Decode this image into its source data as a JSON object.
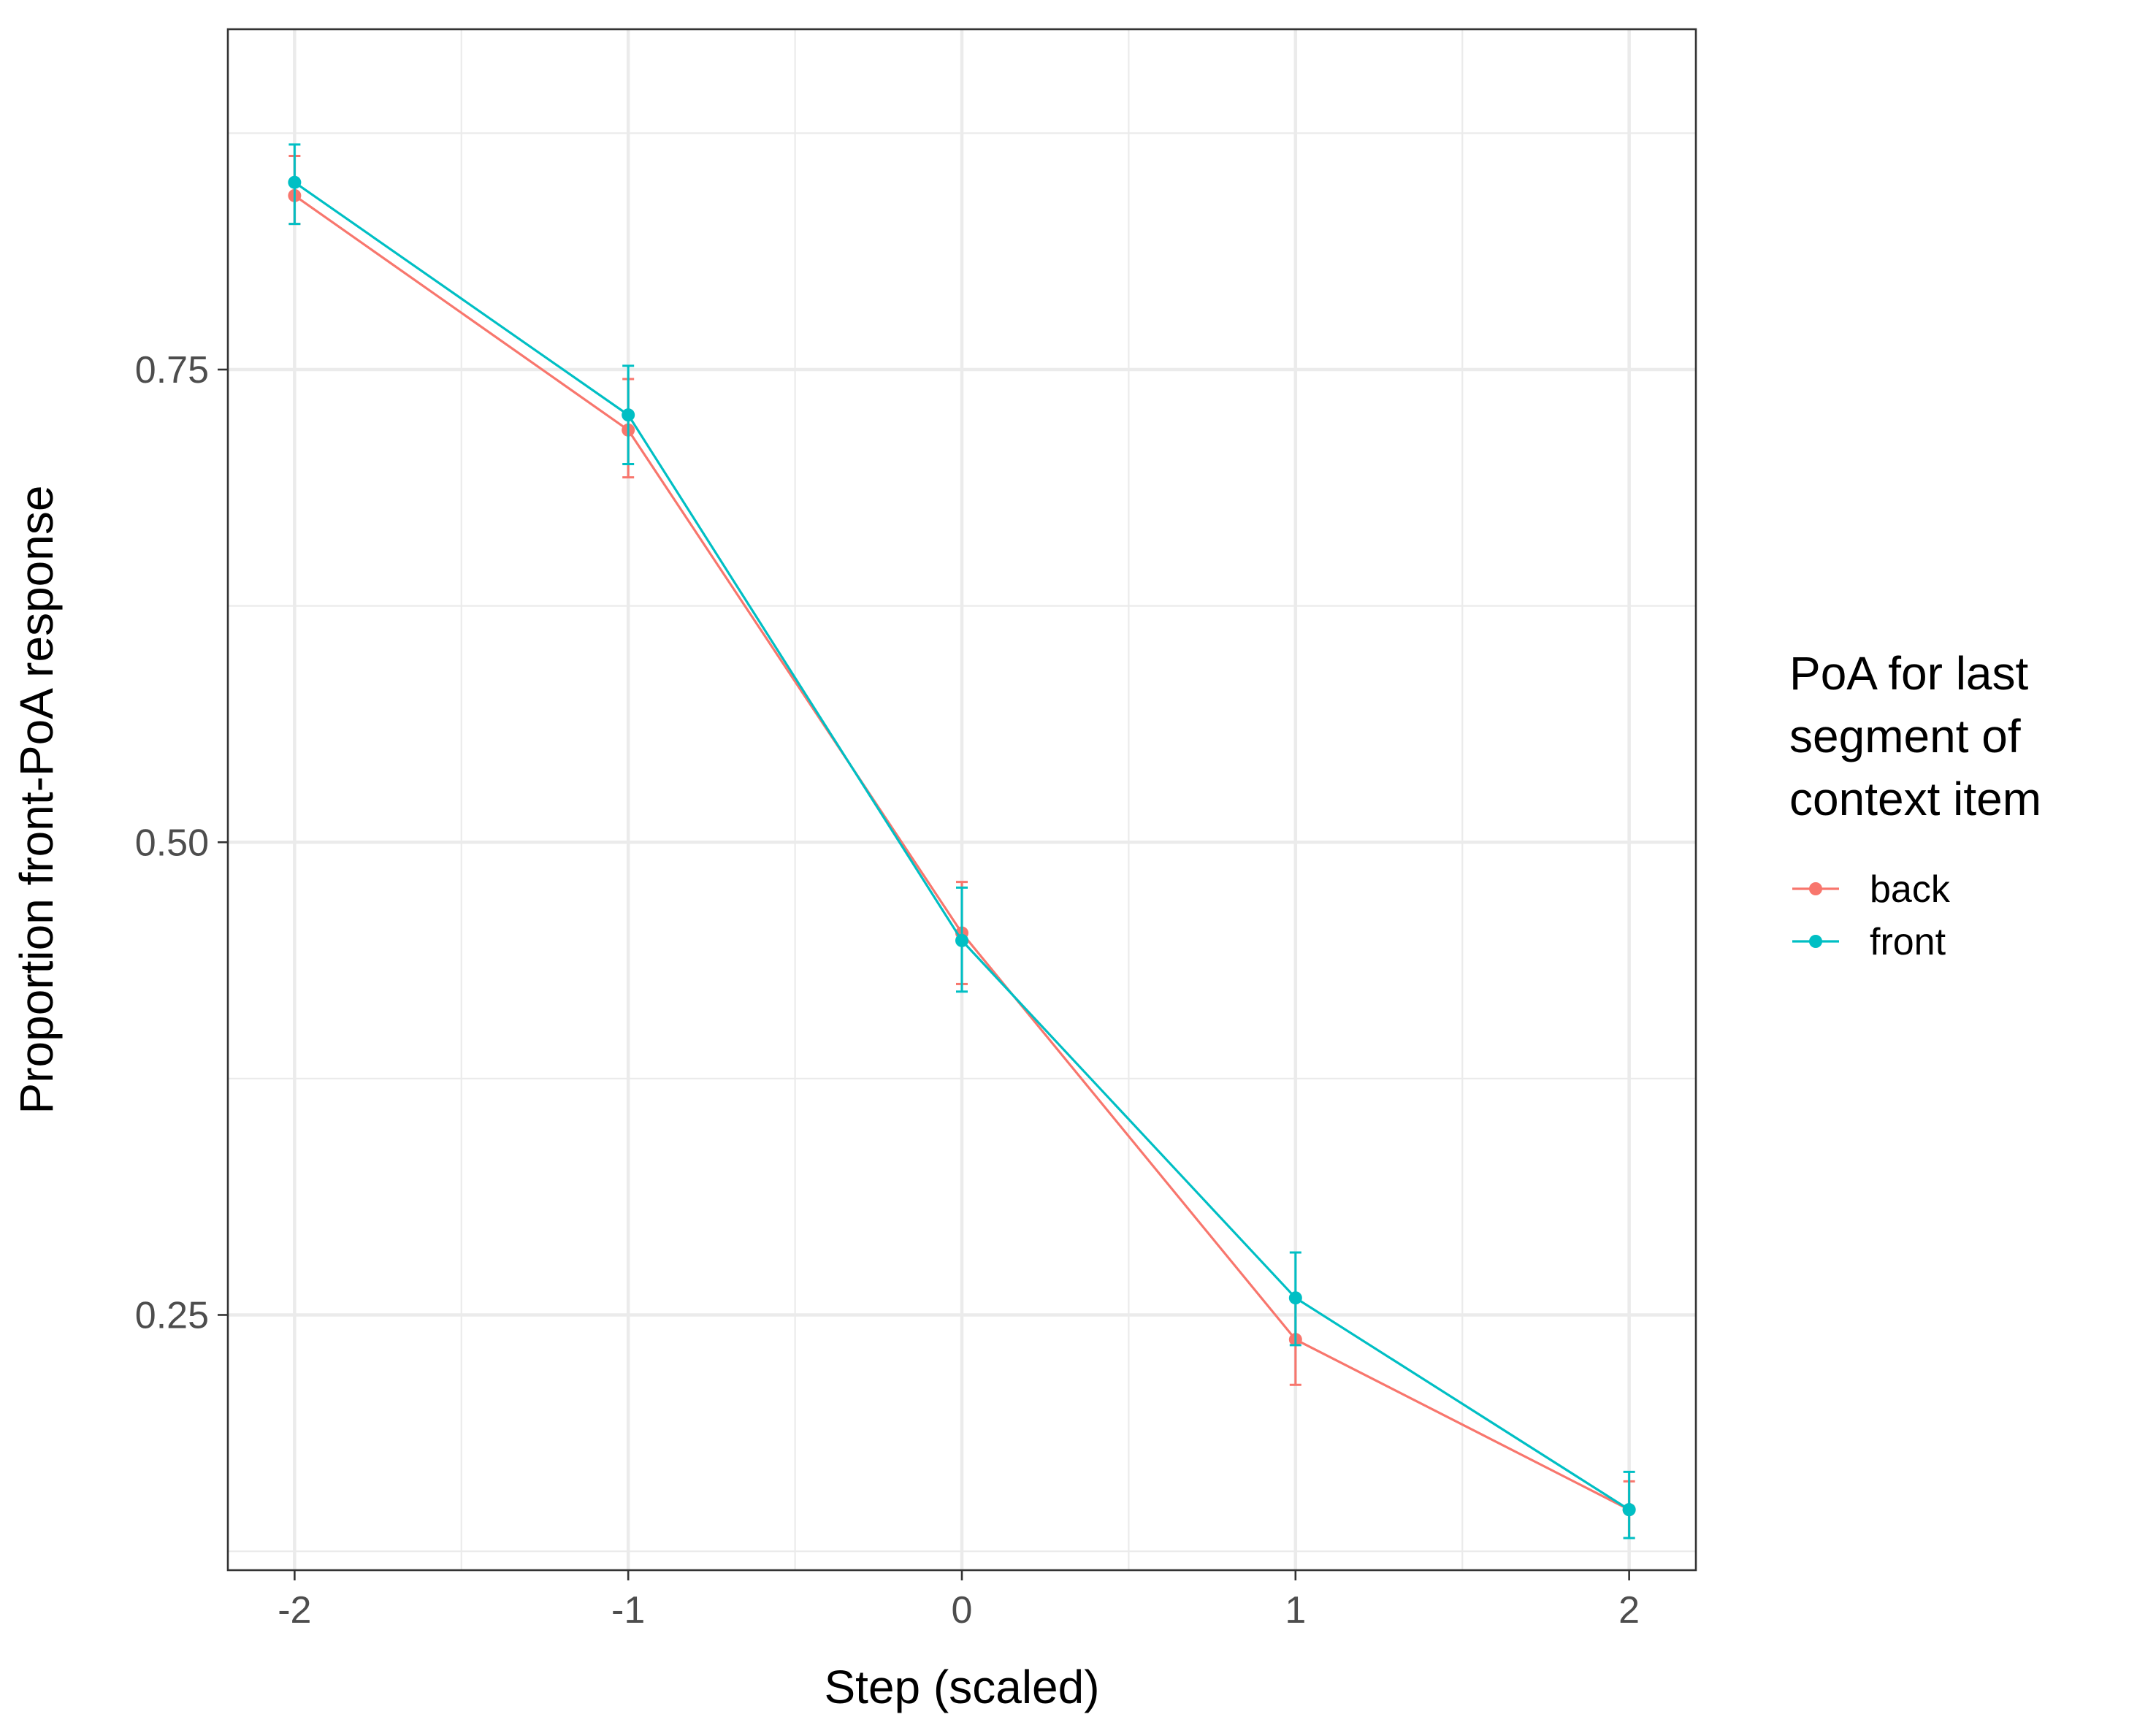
{
  "chart_data": {
    "type": "line",
    "title": "",
    "xlabel": "Step (scaled)",
    "ylabel": "Proportion front-PoA response",
    "xlim": [
      -2.2,
      2.2
    ],
    "ylim": [
      0.115,
      0.93
    ],
    "x_ticks": [
      -2,
      -1,
      0,
      1,
      2
    ],
    "x_tick_labels": [
      "-2",
      "-1",
      "0",
      "1",
      "2"
    ],
    "y_ticks": [
      0.25,
      0.5,
      0.75
    ],
    "y_tick_labels": [
      "0.25",
      "0.50",
      "0.75"
    ],
    "grid": true,
    "legend": {
      "title_lines": [
        "PoA for last",
        "segment of",
        "context item"
      ],
      "position": "right"
    },
    "series": [
      {
        "name": "back",
        "color": "#F8766D",
        "x": [
          -2,
          -1,
          0,
          1,
          2
        ],
        "y": [
          0.842,
          0.718,
          0.452,
          0.237,
          0.147
        ],
        "err_low": [
          0.827,
          0.693,
          0.425,
          0.213,
          0.132
        ],
        "err_high": [
          0.863,
          0.745,
          0.479,
          0.258,
          0.162
        ]
      },
      {
        "name": "front",
        "color": "#00BFC4",
        "x": [
          -2,
          -1,
          0,
          1,
          2
        ],
        "y": [
          0.849,
          0.726,
          0.448,
          0.259,
          0.147
        ],
        "err_low": [
          0.827,
          0.7,
          0.421,
          0.234,
          0.132
        ],
        "err_high": [
          0.869,
          0.752,
          0.476,
          0.283,
          0.167
        ]
      }
    ]
  }
}
